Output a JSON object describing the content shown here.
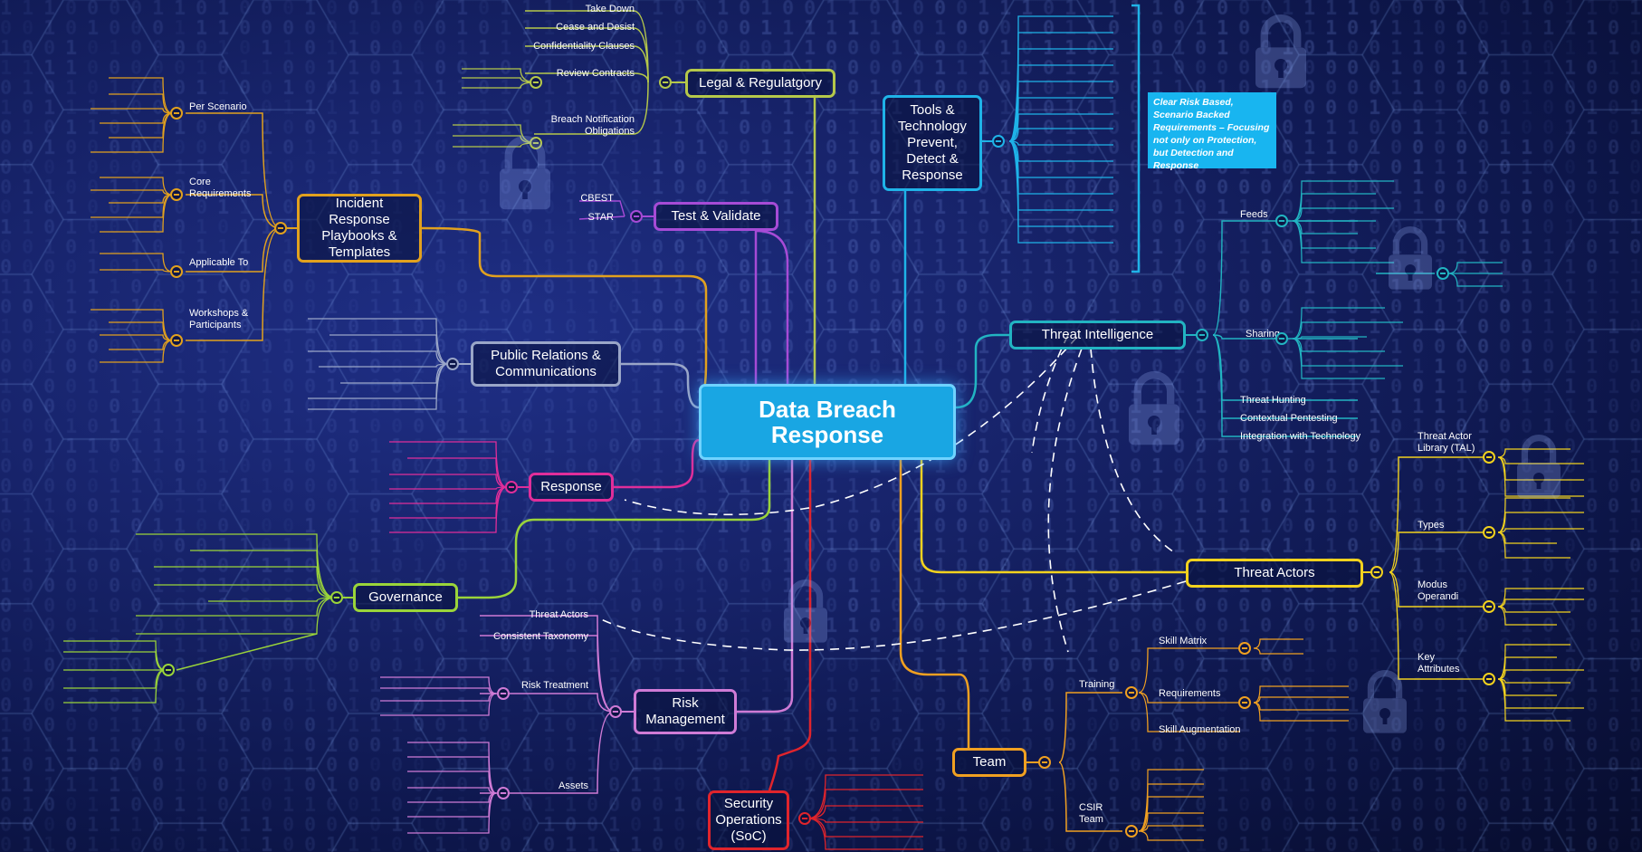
{
  "center": {
    "title": "Data Breach Response"
  },
  "branches": {
    "legal": {
      "label": "Legal & Regulatgory",
      "items": [
        "Take Down",
        "Cease and Desist",
        "Confidentiality Clauses",
        "Review Contracts",
        "Breach Notification Obligations"
      ],
      "color": "#b5c84a"
    },
    "test": {
      "label": "Test & Validate",
      "items": [
        "CBEST",
        "STAR"
      ],
      "color": "#a64bd6"
    },
    "playbooks": {
      "label": "Incident Response Playbooks & Templates",
      "items": [
        "Per Scenario",
        "Core Requirements",
        "Applicable To",
        "Workshops & Participants"
      ],
      "color": "#e2a11e"
    },
    "pr": {
      "label": "Public Relations & Communications",
      "color": "#9aa6c8"
    },
    "response": {
      "label": "Response",
      "color": "#e02e9a"
    },
    "governance": {
      "label": "Governance",
      "color": "#9ad43a"
    },
    "risk": {
      "label": "Risk Management",
      "items": [
        "Threat Actors",
        "Consistent Taxonomy",
        "Risk Treatment",
        "Assets"
      ],
      "color": "#cf7bd6"
    },
    "soc": {
      "label": "Security Operations (SoC)",
      "color": "#e0242c"
    },
    "tools": {
      "label": "Tools & Technology Prevent, Detect & Response",
      "color": "#1fb3e8"
    },
    "ti": {
      "label": "Threat Intelligence",
      "items": [
        "Feeds",
        "Sharing",
        "Threat Hunting",
        "Contextual Pentesting",
        "Integration with Technology"
      ],
      "color": "#22b4c2"
    },
    "ta": {
      "label": "Threat Actors",
      "items": [
        "Threat Actor Library (TAL)",
        "Types",
        "Modus Operandi",
        "Key Attributes"
      ],
      "color": "#f2d21e"
    },
    "team": {
      "label": "Team",
      "items": [
        "Training",
        "Skill Matrix",
        "Requirements",
        "Skill Augmentation",
        "CSIR Team"
      ],
      "color": "#f0a021"
    }
  },
  "callout": {
    "text": "Clear Risk Based, Scenario Backed Requirements – Focusing not only on Protection, but Detection and Response"
  },
  "icons": [
    "lock-icon",
    "collapse-icon"
  ]
}
